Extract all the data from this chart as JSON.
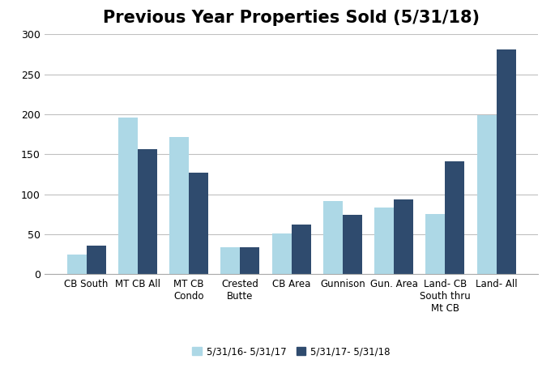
{
  "title": "Previous Year Properties Sold (5/31/18)",
  "categories": [
    "CB South",
    "MT CB All",
    "MT CB\nCondo",
    "Crested\nButte",
    "CB Area",
    "Gunnison",
    "Gun. Area",
    "Land- CB\nSouth thru\nMt CB",
    "Land- All"
  ],
  "series1_label": "5/31/16- 5/31/17",
  "series2_label": "5/31/17- 5/31/18",
  "series1_values": [
    25,
    196,
    172,
    34,
    51,
    92,
    83,
    75,
    199
  ],
  "series2_values": [
    36,
    156,
    127,
    34,
    62,
    74,
    94,
    141,
    281
  ],
  "color1": "#add8e6",
  "color2": "#2f4b6e",
  "ylim": [
    0,
    300
  ],
  "yticks": [
    0,
    50,
    100,
    150,
    200,
    250,
    300
  ],
  "bg_color": "#ffffff",
  "grid_color": "#c0c0c0",
  "title_fontsize": 15,
  "bar_width": 0.38,
  "figsize": [
    6.85,
    4.7
  ],
  "dpi": 100,
  "tick_fontsize": 8.5,
  "legend_fontsize": 8.5,
  "ytick_fontsize": 9
}
